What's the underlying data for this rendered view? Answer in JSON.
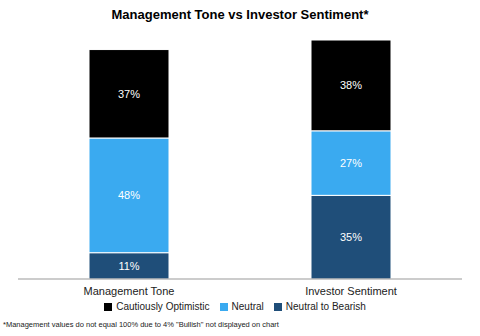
{
  "chart_data": {
    "type": "bar",
    "title": "Management Tone vs Investor Sentiment*",
    "footnote": "*Management values do not equal 100% due to 4% \"Bullish\" not displayed on chart",
    "categories": [
      "Management Tone",
      "Investor Sentiment"
    ],
    "series": [
      {
        "name": "Neutral to Bearish",
        "color": "#1f4e79",
        "values": [
          11,
          35
        ],
        "value_labels": [
          "11%",
          "35%"
        ]
      },
      {
        "name": "Neutral",
        "color": "#3aaaf0",
        "values": [
          48,
          27
        ],
        "value_labels": [
          "48%",
          "27%"
        ]
      },
      {
        "name": "Cautiously Optimistic",
        "color": "#000000",
        "values": [
          37,
          38
        ],
        "value_labels": [
          "37%",
          "38%"
        ]
      }
    ],
    "ylim": [
      0,
      100
    ],
    "stacked": true,
    "data_labels": true,
    "legend": "bottom",
    "tick_labels": "x",
    "grid": false
  }
}
